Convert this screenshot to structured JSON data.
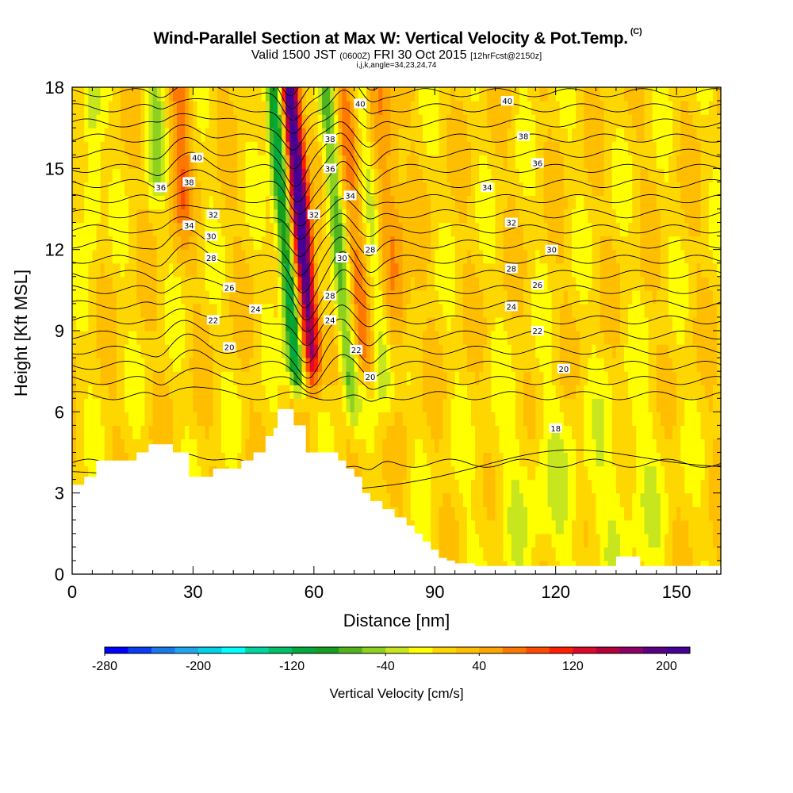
{
  "header": {
    "title": "Wind-Parallel Section at Max W: Vertical Velocity & Pot.Temp.",
    "title_mark": "(C)",
    "valid_pre": "Valid 1500 JST",
    "valid_utc": "(0600Z)",
    "valid_date": "FRI 30 Oct 2015",
    "valid_fcst": "[12hrFcst@2150z]",
    "params": "i,j,k,angle=34,23,24,74"
  },
  "chart_data": {
    "type": "heatmap",
    "xlabel": "Distance [nm]",
    "ylabel": "Height [Kft MSL]",
    "xlim": [
      0,
      161
    ],
    "ylim": [
      0,
      18
    ],
    "xticks": [
      0,
      30,
      60,
      90,
      120,
      150
    ],
    "yticks": [
      0,
      3,
      6,
      9,
      12,
      15,
      18
    ],
    "colorbar": {
      "title": "Vertical Velocity [cm/s]",
      "min": -280,
      "max": 220,
      "step": 20,
      "labels": [
        -280,
        -200,
        -120,
        -40,
        40,
        120,
        200
      ],
      "colors": [
        "#0000ff",
        "#0a3cf5",
        "#1a78eb",
        "#1fa5ef",
        "#00d2e8",
        "#00ffff",
        "#00d7a0",
        "#00c068",
        "#00aa3c",
        "#14a01e",
        "#50b41e",
        "#8cd21e",
        "#c8e61e",
        "#ffff00",
        "#ffd700",
        "#ffbe00",
        "#ffa500",
        "#ff7800",
        "#ff4b00",
        "#ff1e00",
        "#dc0a28",
        "#b4003c",
        "#8c0064",
        "#5a0082",
        "#460096"
      ]
    },
    "theta_contours_C": [
      18,
      19,
      20,
      21,
      22,
      23,
      24,
      25,
      26,
      27,
      28,
      29,
      30,
      31,
      32,
      33,
      34,
      35,
      36,
      37,
      38,
      39,
      40,
      41,
      42
    ],
    "theta_labels": [
      {
        "v": "40",
        "x": 31,
        "y": 15.4
      },
      {
        "v": "38",
        "x": 29,
        "y": 14.5
      },
      {
        "v": "36",
        "x": 22,
        "y": 14.3
      },
      {
        "v": "34",
        "x": 29,
        "y": 12.9
      },
      {
        "v": "32",
        "x": 35,
        "y": 13.3
      },
      {
        "v": "30",
        "x": 34.5,
        "y": 12.5
      },
      {
        "v": "28",
        "x": 34.5,
        "y": 11.7
      },
      {
        "v": "26",
        "x": 39,
        "y": 10.6
      },
      {
        "v": "24",
        "x": 45.5,
        "y": 9.8
      },
      {
        "v": "22",
        "x": 35,
        "y": 9.4
      },
      {
        "v": "20",
        "x": 39,
        "y": 8.4
      },
      {
        "v": "40",
        "x": 71.5,
        "y": 17.4
      },
      {
        "v": "38",
        "x": 64,
        "y": 16.1
      },
      {
        "v": "36",
        "x": 64,
        "y": 15.0
      },
      {
        "v": "34",
        "x": 69,
        "y": 14.0
      },
      {
        "v": "32",
        "x": 60,
        "y": 13.3
      },
      {
        "v": "30",
        "x": 67,
        "y": 11.7
      },
      {
        "v": "28",
        "x": 74,
        "y": 12.0
      },
      {
        "v": "28",
        "x": 64,
        "y": 10.3
      },
      {
        "v": "24",
        "x": 64,
        "y": 9.4
      },
      {
        "v": "22",
        "x": 70.5,
        "y": 8.3
      },
      {
        "v": "20",
        "x": 74,
        "y": 7.3
      },
      {
        "v": "40",
        "x": 108,
        "y": 17.5
      },
      {
        "v": "38",
        "x": 112,
        "y": 16.2
      },
      {
        "v": "36",
        "x": 115.5,
        "y": 15.2
      },
      {
        "v": "34",
        "x": 103,
        "y": 14.3
      },
      {
        "v": "32",
        "x": 109,
        "y": 13.0
      },
      {
        "v": "30",
        "x": 119,
        "y": 12.0
      },
      {
        "v": "28",
        "x": 109,
        "y": 11.3
      },
      {
        "v": "26",
        "x": 115.5,
        "y": 10.7
      },
      {
        "v": "24",
        "x": 109,
        "y": 9.9
      },
      {
        "v": "22",
        "x": 115.5,
        "y": 9.0
      },
      {
        "v": "20",
        "x": 122,
        "y": 7.6
      },
      {
        "v": "18",
        "x": 120,
        "y": 5.4
      }
    ],
    "terrain_kft": [
      [
        0,
        3.3
      ],
      [
        3,
        3.3
      ],
      [
        3,
        3.6
      ],
      [
        6,
        3.6
      ],
      [
        6,
        4.2
      ],
      [
        16,
        4.2
      ],
      [
        16,
        4.5
      ],
      [
        19,
        4.5
      ],
      [
        19,
        4.8
      ],
      [
        25,
        4.8
      ],
      [
        25,
        4.5
      ],
      [
        29,
        4.5
      ],
      [
        29,
        3.6
      ],
      [
        35,
        3.6
      ],
      [
        35,
        3.9
      ],
      [
        42,
        3.9
      ],
      [
        42,
        4.2
      ],
      [
        45,
        4.2
      ],
      [
        45,
        4.5
      ],
      [
        48,
        4.5
      ],
      [
        48,
        5.1
      ],
      [
        50,
        5.1
      ],
      [
        50,
        5.4
      ],
      [
        51,
        5.4
      ],
      [
        51,
        6.1
      ],
      [
        55,
        6.1
      ],
      [
        55,
        5.5
      ],
      [
        58,
        5.5
      ],
      [
        58,
        4.5
      ],
      [
        66,
        4.5
      ],
      [
        66,
        4.2
      ],
      [
        68,
        4.2
      ],
      [
        68,
        3.9
      ],
      [
        70,
        3.9
      ],
      [
        70,
        3.6
      ],
      [
        72,
        3.6
      ],
      [
        72,
        3.0
      ],
      [
        74,
        3.0
      ],
      [
        74,
        2.7
      ],
      [
        77,
        2.7
      ],
      [
        77,
        2.4
      ],
      [
        80,
        2.4
      ],
      [
        80,
        2.1
      ],
      [
        83,
        2.1
      ],
      [
        83,
        1.8
      ],
      [
        85,
        1.8
      ],
      [
        85,
        1.5
      ],
      [
        87,
        1.5
      ],
      [
        87,
        1.2
      ],
      [
        89,
        1.2
      ],
      [
        89,
        0.9
      ],
      [
        91,
        0.9
      ],
      [
        91,
        0.6
      ],
      [
        93,
        0.6
      ],
      [
        93,
        0.5
      ],
      [
        95,
        0.5
      ],
      [
        95,
        0.4
      ],
      [
        100,
        0.4
      ],
      [
        100,
        0.3
      ],
      [
        135,
        0.3
      ],
      [
        135,
        0.65
      ],
      [
        141,
        0.65
      ],
      [
        141,
        0.3
      ],
      [
        161,
        0.3
      ]
    ]
  }
}
